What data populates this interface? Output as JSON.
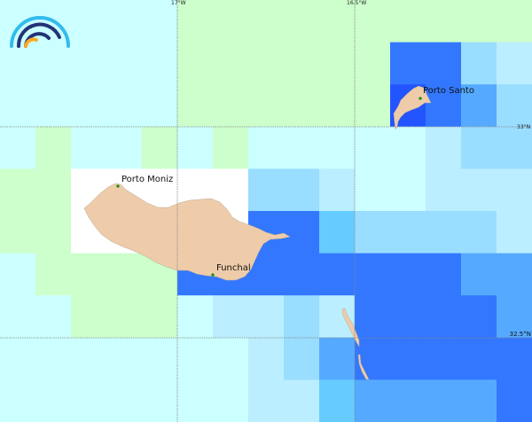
{
  "map": {
    "palette": {
      "C": "#ccffff",
      "G": "#ccffcc",
      "W": "#ffffff",
      "L1": "#bbeeff",
      "L2": "#99ddff",
      "L3": "#66ccff",
      "M": "#55aaff",
      "B": "#3377ff",
      "D": "#2255ff"
    },
    "land_color": "#eeccaa",
    "city_dot_color": "#118811",
    "gridline_color": "#888888",
    "cells": [
      [
        "C",
        "C",
        "C",
        "C",
        "C",
        "G",
        "G",
        "G",
        "G",
        "G",
        "G",
        "G",
        "G",
        "G",
        "G"
      ],
      [
        "C",
        "C",
        "C",
        "C",
        "C",
        "G",
        "G",
        "G",
        "G",
        "G",
        "G",
        "B",
        "B",
        "L2",
        "L1"
      ],
      [
        "C",
        "C",
        "C",
        "C",
        "C",
        "G",
        "G",
        "G",
        "G",
        "G",
        "G",
        "D",
        "B",
        "M",
        "L2"
      ],
      [
        "C",
        "G",
        "C",
        "C",
        "G",
        "C",
        "G",
        "C",
        "C",
        "C",
        "C",
        "C",
        "L1",
        "L2",
        "L2"
      ],
      [
        "G",
        "G",
        "W",
        "W",
        "W",
        "W",
        "W",
        "L2",
        "L2",
        "L1",
        "C",
        "C",
        "L1",
        "L1",
        "L1"
      ],
      [
        "G",
        "G",
        "W",
        "W",
        "W",
        "W",
        "W",
        "B",
        "B",
        "L3",
        "L2",
        "L2",
        "L2",
        "L2",
        "L1"
      ],
      [
        "C",
        "G",
        "G",
        "G",
        "G",
        "B",
        "B",
        "B",
        "B",
        "B",
        "B",
        "B",
        "B",
        "M",
        "M"
      ],
      [
        "C",
        "C",
        "G",
        "G",
        "G",
        "C",
        "L1",
        "L1",
        "L2",
        "L1",
        "B",
        "B",
        "B",
        "B",
        "M"
      ],
      [
        "C",
        "C",
        "C",
        "C",
        "C",
        "C",
        "C",
        "L1",
        "L2",
        "M",
        "B",
        "B",
        "B",
        "B",
        "B"
      ],
      [
        "C",
        "C",
        "C",
        "C",
        "C",
        "C",
        "C",
        "L1",
        "L1",
        "L3",
        "M",
        "M",
        "M",
        "M",
        "B"
      ]
    ],
    "longitude_labels": [
      "17°W",
      "16.5°W"
    ],
    "latitude_labels": [
      "33°N",
      "32.5°N"
    ],
    "places": [
      {
        "name": "Porto Moniz"
      },
      {
        "name": "Porto Santo"
      },
      {
        "name": "Funchal"
      }
    ],
    "logo": {
      "colors": [
        "#33bbee",
        "#223377",
        "#ffaa22"
      ]
    }
  }
}
